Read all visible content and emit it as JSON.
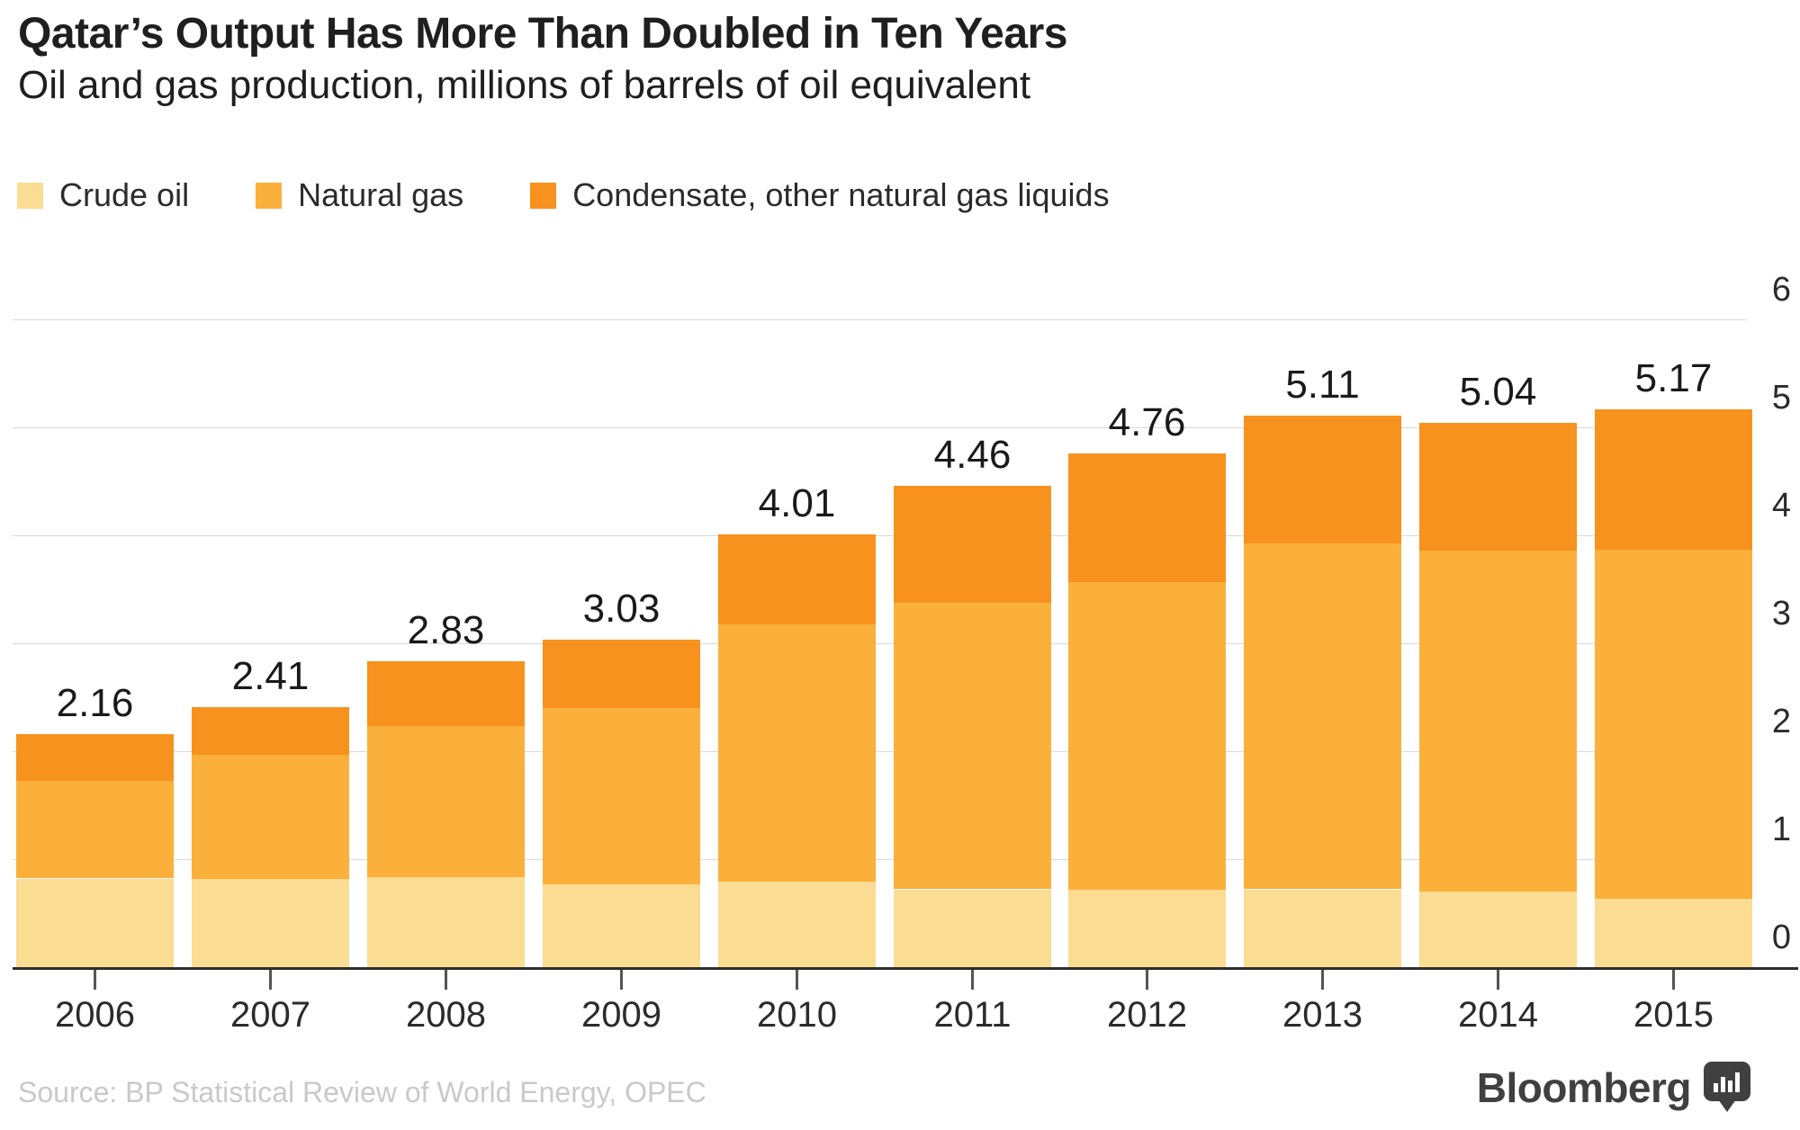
{
  "header": {
    "title": "Qatar’s Output Has More Than Doubled in Ten Years",
    "subtitle": "Oil and gas production, millions of barrels of oil equivalent"
  },
  "chart_data": {
    "type": "bar",
    "stacked": true,
    "title": "Qatar’s Output Has More Than Doubled in Ten Years",
    "subtitle": "Oil and gas production, millions of barrels of oil equivalent",
    "categories": [
      "2006",
      "2007",
      "2008",
      "2009",
      "2010",
      "2011",
      "2012",
      "2013",
      "2014",
      "2015"
    ],
    "series": [
      {
        "name": "Crude oil",
        "color": "#FADC92",
        "values": [
          0.82,
          0.82,
          0.83,
          0.77,
          0.79,
          0.72,
          0.72,
          0.72,
          0.7,
          0.64
        ]
      },
      {
        "name": "Natural gas",
        "color": "#FBB03C",
        "values": [
          0.91,
          1.15,
          1.4,
          1.63,
          2.39,
          2.66,
          2.85,
          3.21,
          3.16,
          3.23
        ]
      },
      {
        "name": "Condensate, other natural gas liquids",
        "color": "#F7921E",
        "values": [
          0.43,
          0.44,
          0.6,
          0.63,
          0.83,
          1.08,
          1.19,
          1.18,
          1.18,
          1.3
        ]
      }
    ],
    "total_labels": [
      "2.16",
      "2.41",
      "2.83",
      "3.03",
      "4.01",
      "4.46",
      "4.76",
      "5.11",
      "5.04",
      "5.17"
    ],
    "yticks": [
      0,
      1,
      2,
      3,
      4,
      5,
      6
    ],
    "ylim": [
      0,
      6
    ],
    "grid": true,
    "y_axis_side": "right",
    "legend_position": "top"
  },
  "colors": {
    "gridline": "#D8D8D8",
    "axis_line": "#2E2E2E",
    "text": "#2B2B2B",
    "source_text": "#C9C9C9",
    "brand": "#404040"
  },
  "footer": {
    "source": "Source: BP Statistical Review of World Energy, OPEC",
    "brand": "Bloomberg"
  }
}
